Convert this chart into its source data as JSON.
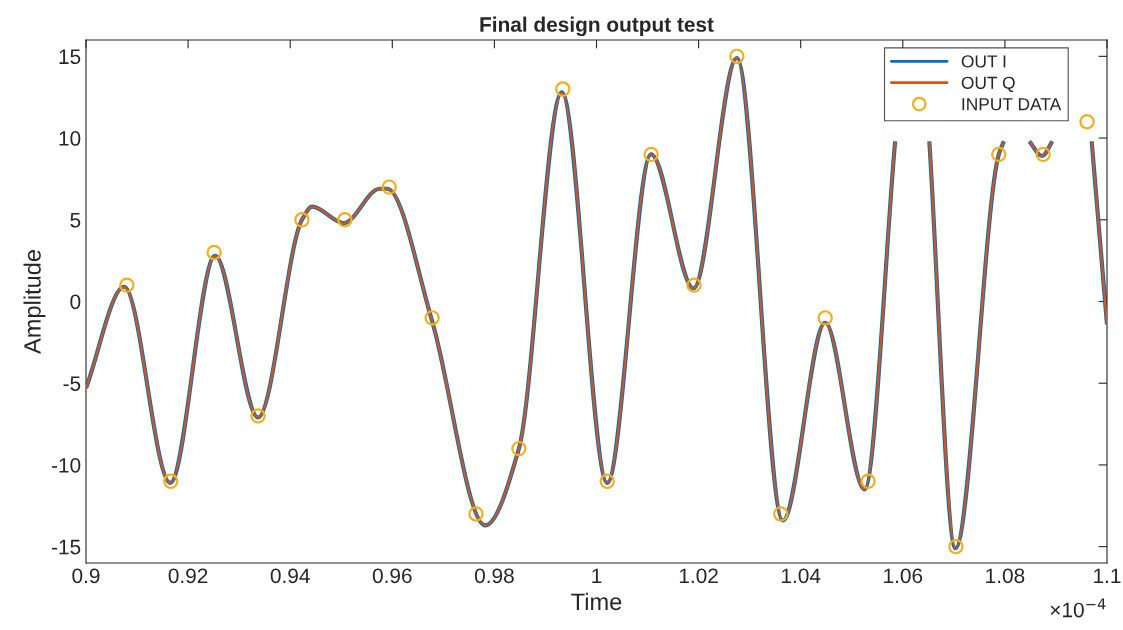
{
  "chart_data": {
    "type": "line",
    "title": "Final design output test",
    "xlabel": "Time",
    "ylabel": "Amplitude",
    "xlim": [
      0.9,
      1.1
    ],
    "xticks": [
      0.9,
      0.92,
      0.94,
      0.96,
      0.98,
      1,
      1.02,
      1.04,
      1.06,
      1.08,
      1.1
    ],
    "ylim": [
      -16,
      16
    ],
    "yticks": [
      -15,
      -10,
      -5,
      0,
      5,
      10,
      15
    ],
    "grid": false,
    "legend": "top right",
    "annotations": [
      "×10$^{−4}$"
    ],
    "series": [
      {
        "name": "OUT I",
        "color": "#0072bd",
        "x": [
          0.9,
          0.9075,
          0.9165,
          0.9253,
          0.9337,
          0.9423,
          0.9443,
          0.9505,
          0.9575,
          0.959,
          0.9678,
          0.9782,
          0.9848,
          0.9932,
          1.0021,
          1.0107,
          1.019,
          1.0275,
          1.0365,
          1.0448,
          1.0525,
          1.0585,
          1.0617,
          1.0652,
          1.0703,
          1.0788,
          1.0798,
          1.082,
          1.0848,
          1.0873,
          1.0893,
          1.093,
          1.097,
          1.1
        ],
        "values": [
          -5.3,
          0.9,
          -11.1,
          2.8,
          -7.1,
          5.0,
          5.8,
          4.8,
          6.9,
          6.9,
          -1.2,
          -13.7,
          -9.0,
          12.8,
          -11.1,
          9.0,
          0.8,
          14.9,
          -13.4,
          -1.3,
          -11.5,
          9.8,
          null,
          9.8,
          -15.1,
          9.0,
          9.8,
          null,
          9.8,
          8.9,
          9.8,
          null,
          9.8,
          -1.4
        ]
      },
      {
        "name": "OUT Q",
        "color": "#d95319",
        "x": [
          0.9,
          0.9075,
          0.9165,
          0.9253,
          0.9337,
          0.9423,
          0.9443,
          0.9505,
          0.9575,
          0.959,
          0.9678,
          0.9782,
          0.9848,
          0.9932,
          1.0021,
          1.0107,
          1.019,
          1.0275,
          1.0365,
          1.0448,
          1.0525,
          1.0585,
          1.0617,
          1.0652,
          1.0703,
          1.0788,
          1.0798,
          1.082,
          1.0848,
          1.0873,
          1.0893,
          1.093,
          1.097,
          1.1
        ],
        "values": [
          -5.3,
          0.9,
          -11.1,
          2.8,
          -7.1,
          5.0,
          5.8,
          4.8,
          6.9,
          6.9,
          -1.2,
          -13.7,
          -9.0,
          12.8,
          -11.1,
          9.0,
          0.8,
          14.9,
          -13.4,
          -1.3,
          -11.5,
          9.8,
          null,
          9.8,
          -15.1,
          9.0,
          9.8,
          null,
          9.8,
          8.9,
          9.8,
          null,
          9.8,
          -1.4
        ]
      },
      {
        "name": "INPUT DATA",
        "type": "scatter",
        "marker": "circle",
        "color": "#edb120",
        "x": [
          0.908,
          0.9166,
          0.9251,
          0.9337,
          0.9423,
          0.9507,
          0.9594,
          0.9678,
          0.9764,
          0.9848,
          0.9934,
          1.0021,
          1.0107,
          1.0191,
          1.0275,
          1.0361,
          1.0448,
          1.0532,
          1.0618,
          1.0704,
          1.0788,
          1.0875,
          1.0961
        ],
        "values": [
          1,
          -11,
          3,
          -7,
          5,
          5,
          7,
          -1,
          -13,
          -9,
          13,
          -11,
          9,
          1,
          15,
          -13,
          -1,
          -11,
          null,
          -15,
          9,
          9,
          11
        ]
      }
    ]
  }
}
